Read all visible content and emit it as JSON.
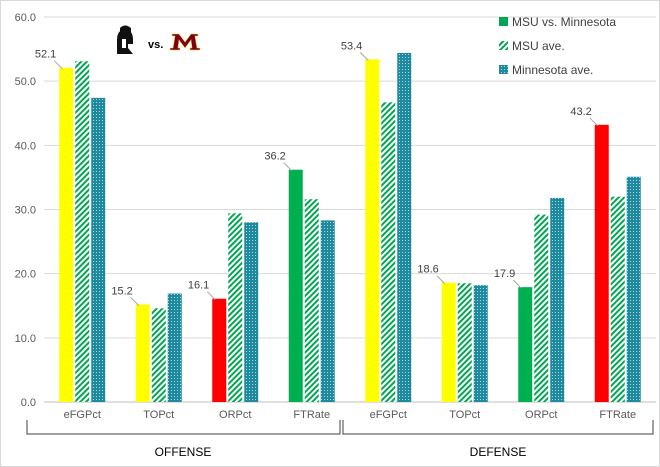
{
  "chart_data": {
    "type": "bar",
    "groups": [
      "OFFENSE",
      "DEFENSE"
    ],
    "categories": [
      "eFGPct",
      "TOPct",
      "ORPct",
      "FTRate",
      "eFGPct",
      "TOPct",
      "ORPct",
      "FTRate"
    ],
    "ylim": [
      0,
      60
    ],
    "yticks": [
      "0.0",
      "10.0",
      "20.0",
      "30.0",
      "40.0",
      "50.0",
      "60.0"
    ],
    "grid": true,
    "legend_position": "top-right",
    "series": [
      {
        "name": "MSU vs. Minnesota",
        "values": [
          52.1,
          15.2,
          16.1,
          36.2,
          53.4,
          18.6,
          17.9,
          43.2
        ]
      },
      {
        "name": "MSU ave.",
        "values": [
          53.1,
          14.6,
          29.4,
          31.6,
          46.7,
          18.5,
          29.2,
          32.0
        ]
      },
      {
        "name": "Minnesota ave.",
        "values": [
          47.4,
          16.9,
          28.0,
          28.3,
          54.4,
          18.2,
          31.8,
          35.1
        ]
      }
    ],
    "data_labels": [
      "52.1",
      "15.2",
      "16.1",
      "36.2",
      "53.4",
      "18.6",
      "17.9",
      "43.2"
    ],
    "highlight_colors": [
      "#ffff00",
      "#ffff00",
      "#ff0000",
      "#00b050",
      "#ffff00",
      "#ffff00",
      "#00b050",
      "#ff0000"
    ]
  },
  "logo": {
    "vs_text": "vs."
  },
  "colors": {
    "msu_green": "#00a651",
    "minnesota_teal": "#1f8a9e",
    "axis": "#bfbfbf",
    "grid": "#d9d9d9"
  }
}
